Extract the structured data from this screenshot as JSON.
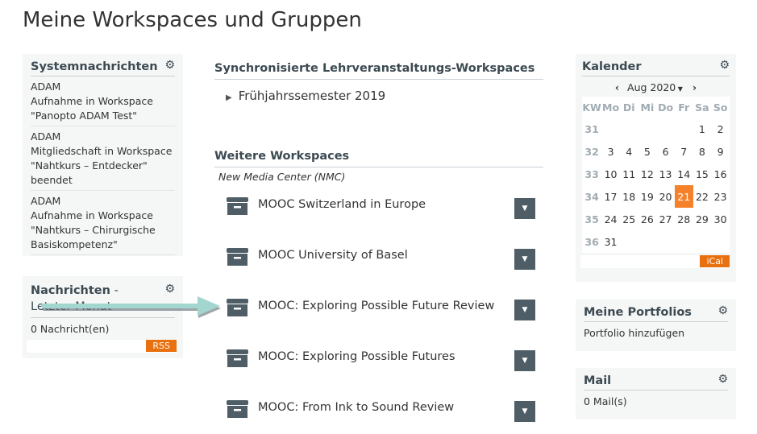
{
  "page_title": "Meine Workspaces und Gruppen",
  "systemnachrichten": {
    "title": "Systemnachrichten",
    "items": [
      {
        "sender": "ADAM",
        "text": "Aufnahme in Workspace \"Panopto ADAM Test\""
      },
      {
        "sender": "ADAM",
        "text": "Mitgliedschaft in Workspace \"Nahtkurs – Entdecker\" beendet"
      },
      {
        "sender": "ADAM",
        "text": "Aufnahme in Workspace \"Nahtkurs – Chirurgische Basiskompetenz\""
      }
    ]
  },
  "nachrichten": {
    "title": "Nachrichten",
    "subtitle": " - Letzter Monat",
    "count": "0 Nachricht(en)",
    "rss": "RSS"
  },
  "sync": {
    "title": "Synchronisierte Lehrveranstaltungs-Workspaces",
    "semester": "Frühjahrssemester 2019"
  },
  "weitere": {
    "title": "Weitere Workspaces",
    "group": "New Media Center (NMC)",
    "items": [
      "MOOC Switzerland in Europe",
      "MOOC University of Basel",
      "MOOC: Exploring Possible Future Review",
      "MOOC: Exploring Possible Futures",
      "MOOC: From Ink to Sound Review"
    ]
  },
  "kalender": {
    "title": "Kalender",
    "month": "Aug 2020",
    "headers": [
      "KW",
      "Mo",
      "Di",
      "Mi",
      "Do",
      "Fr",
      "Sa",
      "So"
    ],
    "weeks": [
      [
        "31",
        "",
        "",
        "",
        "",
        "",
        "1",
        "2"
      ],
      [
        "32",
        "3",
        "4",
        "5",
        "6",
        "7",
        "8",
        "9"
      ],
      [
        "33",
        "10",
        "11",
        "12",
        "13",
        "14",
        "15",
        "16"
      ],
      [
        "34",
        "17",
        "18",
        "19",
        "20",
        "21",
        "22",
        "23"
      ],
      [
        "35",
        "24",
        "25",
        "26",
        "27",
        "28",
        "29",
        "30"
      ],
      [
        "36",
        "31",
        "",
        "",
        "",
        "",
        "",
        ""
      ]
    ],
    "today": "21",
    "ical": "iCal"
  },
  "portfolios": {
    "title": "Meine Portfolios",
    "link": "Portfolio hinzufügen"
  },
  "mail": {
    "title": "Mail",
    "count": "0 Mail(s)"
  },
  "colors": {
    "accent": "#e8700f",
    "today": "#f5822a",
    "dark": "#4f5e66",
    "arrow": "#a3d6cf"
  }
}
